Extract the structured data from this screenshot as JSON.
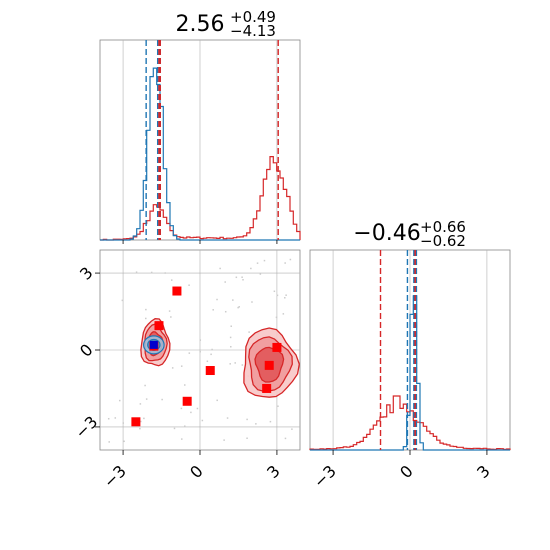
{
  "chart_data": {
    "type": "corner",
    "parameters": [
      {
        "title_value": "2.56",
        "title_plus": "+0.49",
        "title_minus": "−4.13"
      },
      {
        "title_value": "−0.46",
        "title_plus": "+0.66",
        "title_minus": "−0.62"
      }
    ],
    "tick_values": [
      -3,
      0,
      3
    ],
    "tick_labels": [
      "−3",
      "0",
      "3"
    ],
    "range": [
      -3.9,
      3.9
    ],
    "grid": true,
    "colors": {
      "blue": "#1f77b4",
      "red": "#d62728",
      "marker": "#ff0000",
      "marker_blue": "#0000cc",
      "grid": "#b0b0b0"
    },
    "hist_x": {
      "blue_quantile_lines": [
        -2.1,
        -1.65,
        -1.55
      ],
      "red_quantile_lines": [
        -1.55,
        -1.6,
        3.05
      ],
      "blue_peak": {
        "center": -1.75,
        "width": 0.28,
        "height": 1.0
      },
      "red_peaks": [
        {
          "center": -1.7,
          "width": 0.35,
          "height": 0.17
        },
        {
          "center": 2.9,
          "width": 0.45,
          "height": 0.43
        }
      ]
    },
    "hist_y": {
      "blue_quantile_lines": [
        -0.1,
        0.15,
        0.25
      ],
      "red_quantile_lines": [
        -1.15,
        0.2,
        0.2
      ],
      "blue_peak": {
        "center": 0.15,
        "width": 0.12,
        "height": 1.0
      },
      "red_peaks": [
        {
          "center": -0.4,
          "width": 0.75,
          "height": 0.24
        }
      ]
    },
    "scatter_points": [
      {
        "x": -0.9,
        "y": 2.3
      },
      {
        "x": -1.6,
        "y": 0.95
      },
      {
        "x": -1.8,
        "y": 0.15
      },
      {
        "x": 3.0,
        "y": 0.1
      },
      {
        "x": 0.4,
        "y": -0.8
      },
      {
        "x": 2.7,
        "y": -0.6
      },
      {
        "x": 2.6,
        "y": -1.5
      },
      {
        "x": -0.5,
        "y": -2.0
      },
      {
        "x": -2.5,
        "y": -2.8
      }
    ],
    "blue_marker": {
      "x": -1.8,
      "y": 0.2
    },
    "red_modes": [
      {
        "x": -1.75,
        "y": 0.25,
        "rx": 0.55,
        "ry": 0.9
      },
      {
        "x": 2.7,
        "y": -0.55,
        "rx": 1.05,
        "ry": 1.35
      }
    ],
    "blue_mode": {
      "x": -1.8,
      "y": 0.2,
      "rx": 0.4,
      "ry": 0.35
    }
  }
}
